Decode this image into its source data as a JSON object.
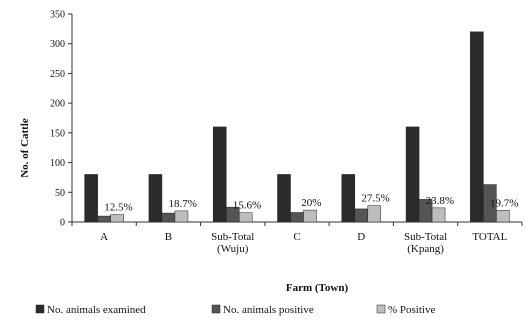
{
  "chart_data": {
    "type": "bar",
    "title": "",
    "xlabel": "Farm (Town)",
    "ylabel": "No. of Cattle",
    "ylim": [
      0,
      350
    ],
    "yticks": [
      0,
      50,
      100,
      150,
      200,
      250,
      300,
      350
    ],
    "grid": false,
    "legend_position": "bottom",
    "categories": [
      [
        "A"
      ],
      [
        "B"
      ],
      [
        "Sub-Total",
        "(Wuju)"
      ],
      [
        "C"
      ],
      [
        "D"
      ],
      [
        "Sub-Total",
        "(Kpang)"
      ],
      [
        "TOTAL"
      ]
    ],
    "series": [
      {
        "name": "No. animals examined",
        "color": "#2b2b2b",
        "values": [
          80,
          80,
          160,
          80,
          80,
          160,
          320
        ]
      },
      {
        "name": "No. animals positive",
        "color": "#555555",
        "values": [
          10,
          15,
          25,
          16,
          22,
          38,
          63
        ]
      },
      {
        "name": "% Positive",
        "color": "#bdbdbd",
        "values": [
          12.5,
          18.7,
          15.6,
          20,
          27.5,
          23.8,
          19.7
        ]
      }
    ],
    "data_labels": [
      "12.5%",
      "18.7%",
      "15.6%",
      "20%",
      "27.5%",
      "23.8%",
      "19.7%"
    ]
  }
}
